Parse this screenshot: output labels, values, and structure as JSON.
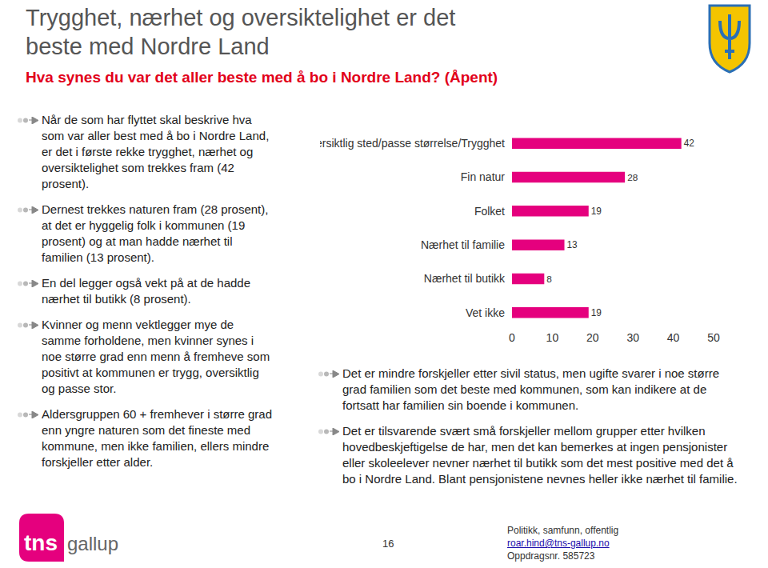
{
  "title": [
    "Trygghet, nærhet og oversiktelighet er det",
    "beste med Nordre Land"
  ],
  "subtitle": "Hva synes du var det aller beste med å bo i Nordre Land? (Åpent)",
  "left_bullets": [
    "Når de som har flyttet skal beskrive hva som var aller best med å bo i Nordre Land, er det i første rekke trygghet, nærhet og oversiktelighet som trekkes fram (42 prosent).",
    "Dernest trekkes naturen fram (28 prosent), at det er hyggelig folk i kommunen (19 prosent) og at man hadde nærhet til familien (13 prosent).",
    "En del legger også vekt på at de hadde nærhet til butikk (8 prosent).",
    "Kvinner og menn vektlegger mye de samme forholdene, men kvinner synes i noe større grad enn menn å fremheve som positivt at kommunen er trygg, oversiktlig og passe stor.",
    "Aldersgruppen 60 + fremhever i større grad enn yngre naturen som det fineste med kommune, men ikke familien, ellers mindre forskjeller etter alder."
  ],
  "right_bullets": [
    "Det er mindre forskjeller etter sivil status, men ugifte svarer i noe større grad familien som det beste med kommunen, som kan indikere at de fortsatt har familien sin boende i kommunen.",
    "Det er tilsvarende svært små forskjeller mellom grupper etter hvilken hovedbeskjeftigelse de har, men det kan bemerkes at ingen pensjonister eller skoleelever nevner nærhet til butikk som det mest positive med det å bo i Nordre Land.  Blant pensjonistene nevnes heller ikke nærhet til familie."
  ],
  "chart_data": {
    "type": "bar",
    "orientation": "horizontal",
    "categories": [
      "Oversiktlig sted/passe størrelse/Trygghet",
      "Fin natur",
      "Folket",
      "Nærhet til familie",
      "Nærhet til butikk",
      "Vet ikke"
    ],
    "values": [
      42,
      28,
      19,
      13,
      8,
      19
    ],
    "color": "#e5007e",
    "xlim": [
      0,
      50
    ],
    "xticks": [
      0,
      10,
      20,
      30,
      40,
      50
    ],
    "data_labels": true,
    "grid": false
  },
  "logo": [
    "tns",
    "gallup"
  ],
  "page": "16",
  "footer": [
    "Politikk, samfunn, offentlig",
    "roar.hind@tns-gallup.no",
    "Oppdragsnr. 585723"
  ]
}
